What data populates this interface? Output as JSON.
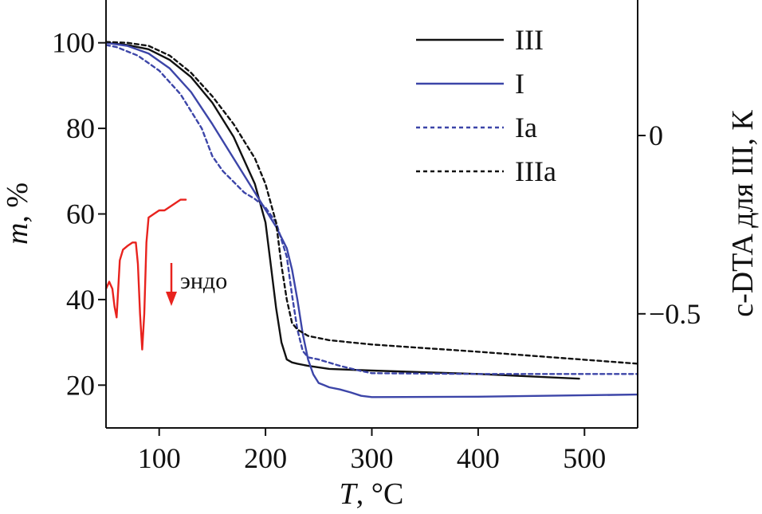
{
  "chart_data": {
    "type": "line",
    "xlabel_var": "T",
    "xlabel_unit": ", °C",
    "ylabel_var": "m",
    "ylabel_unit": ", %",
    "y2label": "c-DTA для III, К",
    "xlim": [
      50,
      550
    ],
    "ylim": [
      10,
      110
    ],
    "y2lim": [
      -0.82,
      0.38
    ],
    "xticks": [
      100,
      200,
      300,
      400,
      500
    ],
    "yticks": [
      20,
      40,
      60,
      80,
      100
    ],
    "y2ticks": [
      {
        "value": 0,
        "label": "0"
      },
      {
        "value": -0.5,
        "label": "−0.5"
      }
    ],
    "annotation": {
      "text": "эндо",
      "arrow": "down",
      "color": "#e8231e",
      "x": 111,
      "y": 45
    },
    "legend": [
      {
        "label": "III",
        "series": "III"
      },
      {
        "label": "I",
        "series": "I"
      },
      {
        "label": "Ia",
        "series": "Ia"
      },
      {
        "label": "IIIa",
        "series": "IIIa"
      }
    ],
    "legend_position": "top-right",
    "series": [
      {
        "name": "III",
        "color": "#111111",
        "dash": "solid",
        "axis": "left",
        "x": [
          50,
          70,
          90,
          110,
          130,
          150,
          170,
          190,
          200,
          205,
          210,
          215,
          220,
          225,
          230,
          240,
          260,
          300,
          400,
          495
        ],
        "y": [
          100,
          99.5,
          98.5,
          96,
          92,
          86,
          78,
          67,
          58,
          48,
          38,
          30,
          26,
          25.3,
          25,
          24.5,
          23.8,
          23.4,
          22.6,
          21.5
        ]
      },
      {
        "name": "I",
        "color": "#3c45a8",
        "dash": "solid",
        "axis": "left",
        "x": [
          50,
          70,
          90,
          110,
          130,
          150,
          170,
          190,
          200,
          210,
          220,
          225,
          230,
          235,
          240,
          245,
          250,
          255,
          260,
          270,
          280,
          290,
          300,
          400,
          550
        ],
        "y": [
          100,
          99.3,
          97.5,
          94,
          88.5,
          81,
          73,
          65,
          61,
          57,
          52,
          47,
          40,
          32,
          26,
          22.5,
          20.5,
          20,
          19.5,
          19,
          18.3,
          17.5,
          17.2,
          17.3,
          17.8
        ]
      },
      {
        "name": "Ia",
        "color": "#3c45a8",
        "dash": "dashed",
        "axis": "left",
        "x": [
          50,
          60,
          80,
          100,
          120,
          140,
          150,
          160,
          170,
          180,
          190,
          200,
          210,
          220,
          225,
          230,
          235,
          240,
          250,
          270,
          290,
          300,
          400,
          550
        ],
        "y": [
          99.5,
          99,
          97,
          93.5,
          88,
          80,
          73.5,
          70,
          67.5,
          65,
          63.5,
          61.5,
          58,
          50,
          41,
          33,
          28,
          26.5,
          26,
          24.5,
          23.3,
          22.8,
          22.6,
          22.6
        ]
      },
      {
        "name": "IIIa",
        "color": "#111111",
        "dash": "dashed",
        "axis": "left",
        "x": [
          50,
          70,
          90,
          110,
          130,
          150,
          170,
          190,
          200,
          210,
          215,
          220,
          225,
          230,
          240,
          260,
          300,
          400,
          550
        ],
        "y": [
          100.2,
          100,
          99.3,
          97,
          93,
          87.5,
          81,
          73,
          67,
          58,
          48,
          40,
          34.5,
          33,
          31.5,
          30.5,
          29.5,
          27.8,
          25
        ]
      },
      {
        "name": "c-DTA III",
        "color": "#e8231e",
        "dash": "solid",
        "axis": "right",
        "x": [
          50,
          53,
          56,
          58,
          60,
          63,
          66,
          70,
          75,
          78,
          80,
          82,
          84,
          86,
          88,
          90,
          95,
          100,
          105,
          110,
          115,
          120,
          125
        ],
        "y": [
          -0.43,
          -0.41,
          -0.43,
          -0.48,
          -0.51,
          -0.35,
          -0.32,
          -0.31,
          -0.3,
          -0.3,
          -0.36,
          -0.5,
          -0.6,
          -0.5,
          -0.3,
          -0.23,
          -0.22,
          -0.21,
          -0.21,
          -0.2,
          -0.19,
          -0.18,
          -0.18
        ]
      }
    ]
  }
}
